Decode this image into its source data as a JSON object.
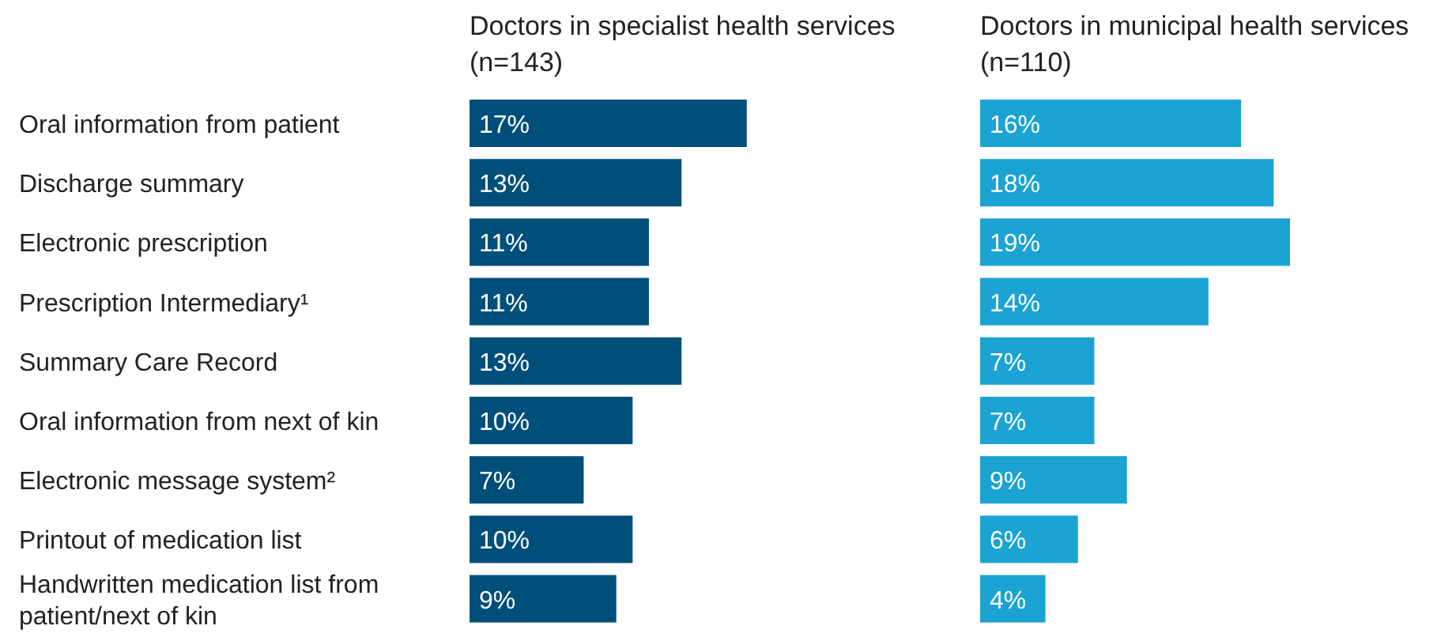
{
  "chart_data": [
    {
      "type": "bar",
      "orientation": "horizontal",
      "title": "Doctors in specialist health services",
      "subtitle": "(n=143)",
      "categories": [
        "Oral information from patient",
        "Discharge summary",
        "Electronic prescription",
        "Prescription Intermediary¹",
        "Summary Care Record",
        "Oral information from next of kin",
        "Electronic message system²",
        "Printout of medication list",
        "Handwritten medication list from patient/next of kin"
      ],
      "values": [
        17,
        13,
        11,
        11,
        13,
        10,
        7,
        10,
        9
      ],
      "value_labels": [
        "17%",
        "13%",
        "11%",
        "11%",
        "13%",
        "10%",
        "7%",
        "10%",
        "9%"
      ],
      "color": "#004f7a"
    },
    {
      "type": "bar",
      "orientation": "horizontal",
      "title": "Doctors in municipal health services",
      "subtitle": "(n=110)",
      "categories": [
        null,
        null,
        null,
        null,
        null,
        null,
        null,
        null,
        null
      ],
      "values": [
        16,
        18,
        19,
        14,
        7,
        7,
        9,
        6,
        4
      ],
      "value_labels": [
        "16%",
        "18%",
        "19%",
        "14%",
        "7%",
        "7%",
        "9%",
        "6%",
        "4%"
      ],
      "color": "#1aa3d3"
    }
  ]
}
